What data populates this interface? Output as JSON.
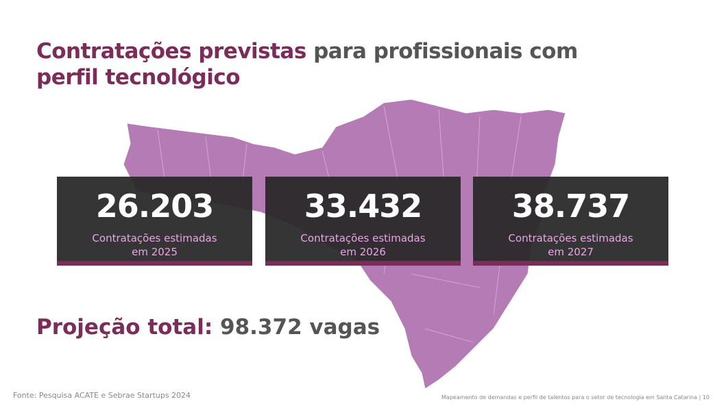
{
  "title": {
    "highlight_1": "Contratações previstas",
    "normal": "para profissionais com",
    "highlight_2": "perfil tecnológico"
  },
  "cards": [
    {
      "number": "26.203",
      "label_line_1": "Contratações estimadas",
      "label_line_2": "em 2025"
    },
    {
      "number": "33.432",
      "label_line_1": "Contratações estimadas",
      "label_line_2": "em 2026"
    },
    {
      "number": "38.737",
      "label_line_1": "Contratações estimadas",
      "label_line_2": "em 2027"
    }
  ],
  "total": {
    "label": "Projeção total:",
    "value": "98.372 vagas"
  },
  "footer": {
    "source": "Fonte: Pesquisa ACATE e Sebrae Startups 2024",
    "caption": "Mapeamento de demandas e perfil de talentos para o setor de tecnologia em Santa Catarina | 10"
  }
}
